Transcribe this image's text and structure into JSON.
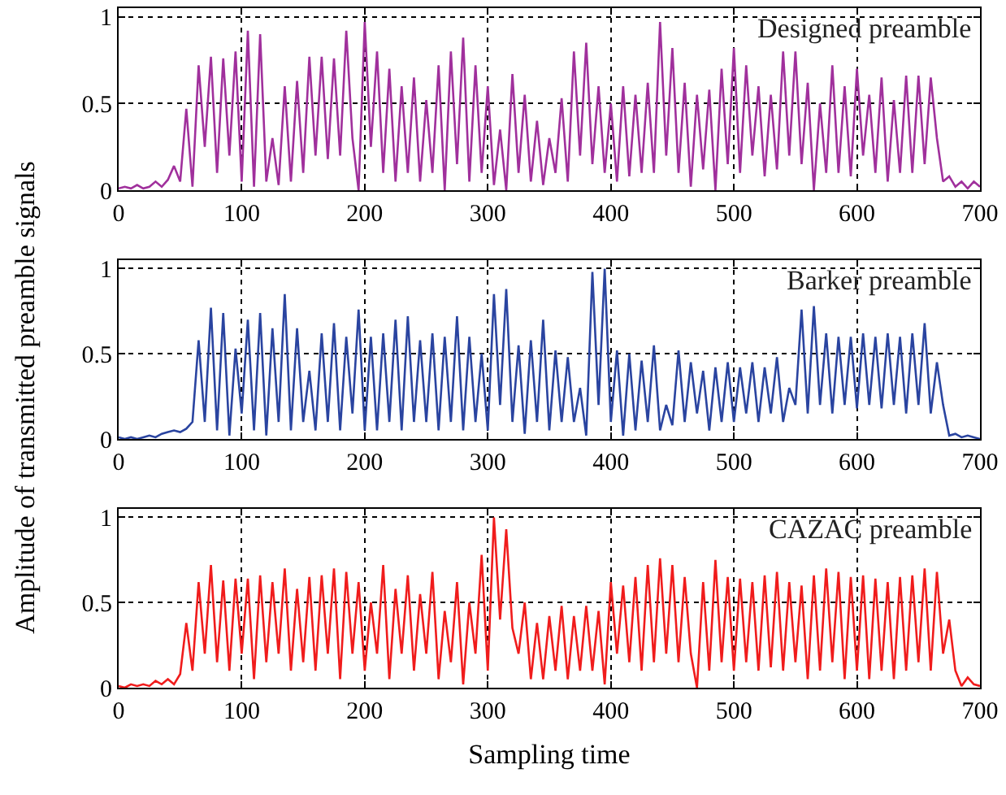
{
  "chart_data": [
    {
      "type": "line",
      "x": [
        0,
        5,
        10,
        15,
        20,
        25,
        30,
        35,
        40,
        45,
        50,
        55,
        60,
        65,
        70,
        75,
        80,
        85,
        90,
        95,
        100,
        105,
        110,
        115,
        120,
        125,
        130,
        135,
        140,
        145,
        150,
        155,
        160,
        165,
        170,
        175,
        180,
        185,
        190,
        195,
        200,
        205,
        210,
        215,
        220,
        225,
        230,
        235,
        240,
        245,
        250,
        255,
        260,
        265,
        270,
        275,
        280,
        285,
        290,
        295,
        300,
        305,
        310,
        315,
        320,
        325,
        330,
        335,
        340,
        345,
        350,
        355,
        360,
        365,
        370,
        375,
        380,
        385,
        390,
        395,
        400,
        405,
        410,
        415,
        420,
        425,
        430,
        435,
        440,
        445,
        450,
        455,
        460,
        465,
        470,
        475,
        480,
        485,
        490,
        495,
        500,
        505,
        510,
        515,
        520,
        525,
        530,
        535,
        540,
        545,
        550,
        555,
        560,
        565,
        570,
        575,
        580,
        585,
        590,
        595,
        600,
        605,
        610,
        615,
        620,
        625,
        630,
        635,
        640,
        645,
        650,
        655,
        660,
        665,
        670,
        675,
        680,
        685,
        690,
        695,
        700
      ],
      "series": [
        {
          "name": "Designed preamble",
          "color": "#a0309c",
          "values": [
            0.01,
            0.02,
            0.01,
            0.03,
            0.01,
            0.02,
            0.05,
            0.02,
            0.06,
            0.14,
            0.05,
            0.47,
            0.02,
            0.72,
            0.25,
            0.77,
            0.1,
            0.76,
            0.2,
            0.8,
            0.05,
            0.92,
            0.02,
            0.9,
            0.05,
            0.3,
            0.03,
            0.6,
            0.05,
            0.63,
            0.1,
            0.77,
            0.2,
            0.77,
            0.18,
            0.76,
            0.2,
            0.92,
            0.3,
            0.0,
            0.97,
            0.25,
            0.8,
            0.1,
            0.7,
            0.05,
            0.6,
            0.1,
            0.65,
            0.05,
            0.52,
            0.1,
            0.72,
            0.0,
            0.8,
            0.15,
            0.88,
            0.05,
            0.72,
            0.1,
            0.6,
            0.03,
            0.35,
            0.0,
            0.67,
            0.1,
            0.55,
            0.05,
            0.4,
            0.03,
            0.3,
            0.1,
            0.53,
            0.05,
            0.8,
            0.2,
            0.85,
            0.15,
            0.6,
            0.1,
            0.5,
            0.05,
            0.6,
            0.08,
            0.55,
            0.1,
            0.62,
            0.1,
            0.97,
            0.2,
            0.82,
            0.1,
            0.62,
            0.02,
            0.55,
            0.12,
            0.58,
            0.0,
            0.7,
            0.15,
            0.82,
            0.1,
            0.72,
            0.2,
            0.6,
            0.08,
            0.55,
            0.12,
            0.8,
            0.2,
            0.8,
            0.15,
            0.62,
            0.0,
            0.5,
            0.1,
            0.72,
            0.1,
            0.6,
            0.08,
            0.7,
            0.2,
            0.55,
            0.1,
            0.65,
            0.05,
            0.52,
            0.1,
            0.66,
            0.1,
            0.66,
            0.15,
            0.65,
            0.3,
            0.05,
            0.08,
            0.02,
            0.05,
            0.01,
            0.05,
            0.02
          ]
        }
      ],
      "xlim": [
        0,
        700
      ],
      "xticks": [
        0,
        100,
        200,
        300,
        400,
        500,
        600,
        700
      ],
      "ylim": [
        0,
        1.05
      ],
      "yticks": [
        0,
        0.5,
        1
      ],
      "grid": true,
      "line_style": "solid"
    },
    {
      "type": "line",
      "ylabel": "Amplitude of transmitted preamble signals",
      "x": [
        0,
        5,
        10,
        15,
        20,
        25,
        30,
        35,
        40,
        45,
        50,
        55,
        60,
        65,
        70,
        75,
        80,
        85,
        90,
        95,
        100,
        105,
        110,
        115,
        120,
        125,
        130,
        135,
        140,
        145,
        150,
        155,
        160,
        165,
        170,
        175,
        180,
        185,
        190,
        195,
        200,
        205,
        210,
        215,
        220,
        225,
        230,
        235,
        240,
        245,
        250,
        255,
        260,
        265,
        270,
        275,
        280,
        285,
        290,
        295,
        300,
        305,
        310,
        315,
        320,
        325,
        330,
        335,
        340,
        345,
        350,
        355,
        360,
        365,
        370,
        375,
        380,
        385,
        390,
        395,
        400,
        405,
        410,
        415,
        420,
        425,
        430,
        435,
        440,
        445,
        450,
        455,
        460,
        465,
        470,
        475,
        480,
        485,
        490,
        495,
        500,
        505,
        510,
        515,
        520,
        525,
        530,
        535,
        540,
        545,
        550,
        555,
        560,
        565,
        570,
        575,
        580,
        585,
        590,
        595,
        600,
        605,
        610,
        615,
        620,
        625,
        630,
        635,
        640,
        645,
        650,
        655,
        660,
        665,
        670,
        675,
        680,
        685,
        690,
        695,
        700
      ],
      "series": [
        {
          "name": "Barker preamble",
          "color": "#2a44a0",
          "values": [
            0.01,
            0,
            0.01,
            0,
            0.01,
            0.02,
            0.01,
            0.03,
            0.04,
            0.05,
            0.04,
            0.06,
            0.1,
            0.58,
            0.1,
            0.77,
            0.05,
            0.74,
            0.02,
            0.53,
            0.15,
            0.7,
            0.05,
            0.74,
            0.02,
            0.65,
            0.1,
            0.85,
            0.05,
            0.65,
            0.1,
            0.4,
            0.05,
            0.62,
            0.1,
            0.68,
            0.05,
            0.6,
            0.15,
            0.76,
            0.05,
            0.6,
            0.05,
            0.62,
            0.1,
            0.7,
            0.05,
            0.72,
            0.1,
            0.58,
            0.1,
            0.62,
            0.05,
            0.6,
            0.1,
            0.72,
            0.05,
            0.6,
            0.1,
            0.5,
            0.05,
            0.85,
            0.2,
            0.88,
            0.1,
            0.55,
            0.03,
            0.58,
            0.1,
            0.7,
            0.05,
            0.52,
            0.1,
            0.48,
            0.1,
            0.3,
            0.02,
            0.98,
            0.2,
            1.0,
            0.1,
            0.52,
            0.02,
            0.5,
            0.05,
            0.46,
            0.1,
            0.55,
            0.05,
            0.2,
            0.08,
            0.52,
            0.1,
            0.45,
            0.15,
            0.4,
            0.05,
            0.42,
            0.1,
            0.45,
            0.1,
            0.42,
            0.15,
            0.45,
            0.1,
            0.42,
            0.15,
            0.48,
            0.1,
            0.3,
            0.2,
            0.76,
            0.15,
            0.78,
            0.2,
            0.62,
            0.15,
            0.6,
            0.2,
            0.6,
            0.18,
            0.62,
            0.2,
            0.6,
            0.18,
            0.62,
            0.2,
            0.6,
            0.15,
            0.62,
            0.2,
            0.68,
            0.15,
            0.45,
            0.2,
            0.02,
            0.03,
            0.01,
            0.02,
            0.01,
            0.0
          ]
        }
      ],
      "xlim": [
        0,
        700
      ],
      "xticks": [
        0,
        100,
        200,
        300,
        400,
        500,
        600,
        700
      ],
      "ylim": [
        0,
        1.05
      ],
      "yticks": [
        0,
        0.5,
        1
      ],
      "grid": true,
      "line_style": "solid"
    },
    {
      "type": "line",
      "xlabel": "Sampling time",
      "x": [
        0,
        5,
        10,
        15,
        20,
        25,
        30,
        35,
        40,
        45,
        50,
        55,
        60,
        65,
        70,
        75,
        80,
        85,
        90,
        95,
        100,
        105,
        110,
        115,
        120,
        125,
        130,
        135,
        140,
        145,
        150,
        155,
        160,
        165,
        170,
        175,
        180,
        185,
        190,
        195,
        200,
        205,
        210,
        215,
        220,
        225,
        230,
        235,
        240,
        245,
        250,
        255,
        260,
        265,
        270,
        275,
        280,
        285,
        290,
        295,
        300,
        305,
        310,
        315,
        320,
        325,
        330,
        335,
        340,
        345,
        350,
        355,
        360,
        365,
        370,
        375,
        380,
        385,
        390,
        395,
        400,
        405,
        410,
        415,
        420,
        425,
        430,
        435,
        440,
        445,
        450,
        455,
        460,
        465,
        470,
        475,
        480,
        485,
        490,
        495,
        500,
        505,
        510,
        515,
        520,
        525,
        530,
        535,
        540,
        545,
        550,
        555,
        560,
        565,
        570,
        575,
        580,
        585,
        590,
        595,
        600,
        605,
        610,
        615,
        620,
        625,
        630,
        635,
        640,
        645,
        650,
        655,
        660,
        665,
        670,
        675,
        680,
        685,
        690,
        695,
        700
      ],
      "series": [
        {
          "name": "CAZAC preamble",
          "color": "#f01c1c",
          "values": [
            0.01,
            0.0,
            0.02,
            0.01,
            0.02,
            0.01,
            0.04,
            0.02,
            0.05,
            0.02,
            0.08,
            0.38,
            0.1,
            0.62,
            0.2,
            0.72,
            0.15,
            0.63,
            0.1,
            0.64,
            0.2,
            0.64,
            0.05,
            0.66,
            0.15,
            0.62,
            0.2,
            0.7,
            0.1,
            0.58,
            0.15,
            0.65,
            0.1,
            0.66,
            0.2,
            0.7,
            0.05,
            0.68,
            0.2,
            0.62,
            0.1,
            0.5,
            0.2,
            0.72,
            0.05,
            0.58,
            0.2,
            0.66,
            0.1,
            0.55,
            0.2,
            0.68,
            0.05,
            0.45,
            0.15,
            0.62,
            0.02,
            0.5,
            0.2,
            0.78,
            0.1,
            1.0,
            0.4,
            0.93,
            0.35,
            0.2,
            0.5,
            0.05,
            0.38,
            0.05,
            0.42,
            0.1,
            0.48,
            0.05,
            0.42,
            0.1,
            0.48,
            0.1,
            0.45,
            0.02,
            0.62,
            0.2,
            0.6,
            0.15,
            0.65,
            0.1,
            0.72,
            0.15,
            0.76,
            0.2,
            0.72,
            0.15,
            0.65,
            0.2,
            0.0,
            0.62,
            0.1,
            0.75,
            0.15,
            0.65,
            0.1,
            0.64,
            0.15,
            0.62,
            0.1,
            0.66,
            0.12,
            0.68,
            0.1,
            0.62,
            0.15,
            0.6,
            0.05,
            0.66,
            0.1,
            0.7,
            0.15,
            0.68,
            0.05,
            0.65,
            0.1,
            0.66,
            0.05,
            0.64,
            0.1,
            0.62,
            0.05,
            0.65,
            0.1,
            0.66,
            0.15,
            0.7,
            0.1,
            0.68,
            0.2,
            0.4,
            0.1,
            0.01,
            0.06,
            0.02,
            0.01
          ]
        }
      ],
      "xlim": [
        0,
        700
      ],
      "xticks": [
        0,
        100,
        200,
        300,
        400,
        500,
        600,
        700
      ],
      "ylim": [
        0,
        1.05
      ],
      "yticks": [
        0,
        0.5,
        1
      ],
      "grid": true,
      "line_style": "solid"
    }
  ]
}
